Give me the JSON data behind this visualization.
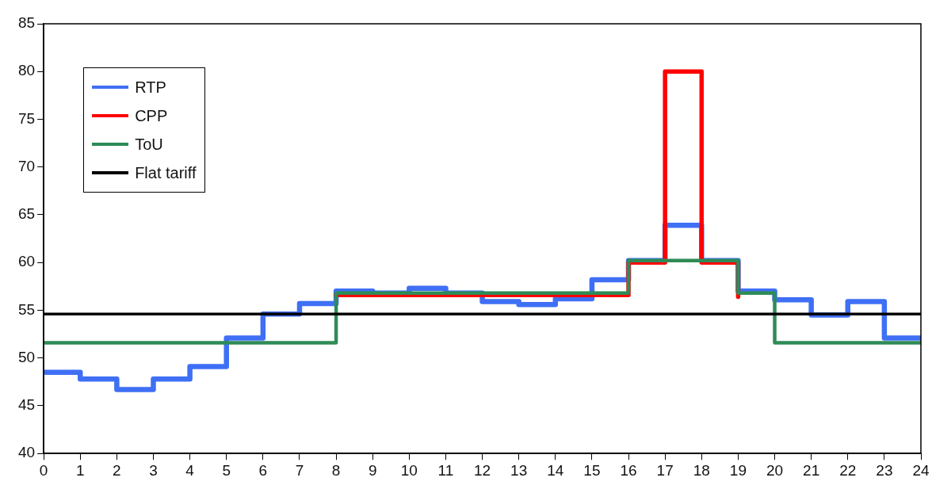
{
  "chart_data": {
    "type": "step",
    "x": [
      0,
      1,
      2,
      3,
      4,
      5,
      6,
      7,
      8,
      9,
      10,
      11,
      12,
      13,
      14,
      15,
      16,
      17,
      18,
      19,
      20,
      21,
      22,
      23,
      24
    ],
    "series": [
      {
        "name": "RTP",
        "color": "#3f6ff5",
        "values": [
          48.5,
          47.8,
          46.7,
          47.8,
          49.1,
          52.1,
          54.6,
          55.7,
          57.0,
          56.8,
          57.3,
          56.8,
          55.9,
          55.6,
          56.2,
          58.2,
          60.2,
          63.9,
          60.2,
          57.0,
          56.1,
          54.5,
          55.9,
          52.1,
          52.1
        ]
      },
      {
        "name": "CPP",
        "color": "#ff0000",
        "values": [
          null,
          null,
          null,
          null,
          null,
          null,
          null,
          null,
          56.6,
          56.6,
          56.6,
          56.6,
          56.6,
          56.6,
          56.6,
          56.6,
          60.0,
          80.0,
          60.0,
          56.4,
          null,
          null,
          null,
          null,
          null
        ]
      },
      {
        "name": "ToU",
        "color": "#2e8b57",
        "values": [
          51.6,
          51.6,
          51.6,
          51.6,
          51.6,
          51.6,
          51.6,
          51.6,
          56.8,
          56.8,
          56.8,
          56.8,
          56.8,
          56.8,
          56.8,
          56.8,
          60.2,
          60.2,
          60.2,
          56.8,
          51.6,
          51.6,
          51.6,
          51.6,
          51.6
        ]
      },
      {
        "name": "Flat tariff",
        "color": "#000000",
        "values": [
          54.6,
          54.6,
          54.6,
          54.6,
          54.6,
          54.6,
          54.6,
          54.6,
          54.6,
          54.6,
          54.6,
          54.6,
          54.6,
          54.6,
          54.6,
          54.6,
          54.6,
          54.6,
          54.6,
          54.6,
          54.6,
          54.6,
          54.6,
          54.6,
          54.6
        ]
      }
    ],
    "xlim": [
      0,
      24
    ],
    "xticks": [
      0,
      1,
      2,
      3,
      4,
      5,
      6,
      7,
      8,
      9,
      10,
      11,
      12,
      13,
      14,
      15,
      16,
      17,
      18,
      19,
      20,
      21,
      22,
      23,
      24
    ],
    "ylim": [
      40,
      85
    ],
    "yticks": [
      40,
      45,
      50,
      55,
      60,
      65,
      70,
      75,
      80,
      85
    ],
    "grid": false,
    "legend": "top left",
    "marker": "none",
    "line_style": "solid"
  }
}
